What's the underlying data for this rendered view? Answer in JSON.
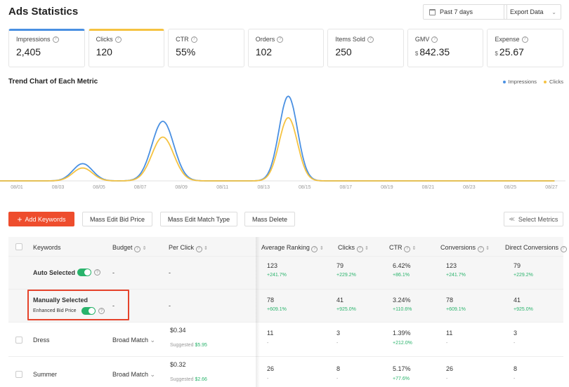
{
  "header": {
    "title": "Ads Statistics",
    "date_range": "Past 7 days",
    "export_label": "Export Data"
  },
  "metrics": [
    {
      "label": "Impressions",
      "value": "2,405",
      "currency": ""
    },
    {
      "label": "Clicks",
      "value": "120",
      "currency": ""
    },
    {
      "label": "CTR",
      "value": "55%",
      "currency": ""
    },
    {
      "label": "Orders",
      "value": "102",
      "currency": ""
    },
    {
      "label": "Items Sold",
      "value": "250",
      "currency": ""
    },
    {
      "label": "GMV",
      "value": "842.35",
      "currency": "$"
    },
    {
      "label": "Expense",
      "value": "25.67",
      "currency": "$"
    }
  ],
  "chart": {
    "title": "Trend Chart of Each Metric",
    "legend": [
      "Impressions",
      "Clicks"
    ]
  },
  "chart_data": {
    "type": "area",
    "x": [
      "08/01",
      "08/02",
      "08/03",
      "08/04",
      "08/05",
      "08/06",
      "08/07",
      "08/08",
      "08/09",
      "08/10",
      "08/11",
      "08/12",
      "08/13",
      "08/14",
      "08/15",
      "08/16",
      "08/17",
      "08/18",
      "08/19",
      "08/20",
      "08/21",
      "08/22",
      "08/23",
      "08/24",
      "08/25",
      "08/26",
      "08/27"
    ],
    "tick_labels": [
      "08/01",
      "08/03",
      "08/05",
      "08/07",
      "08/09",
      "08/11",
      "08/13",
      "08/15",
      "08/17",
      "08/19",
      "08/21",
      "08/23",
      "08/25",
      "08/27"
    ],
    "series": [
      {
        "name": "Impressions",
        "color": "#4a90e2",
        "values": [
          0,
          0,
          0,
          0,
          0,
          0,
          0,
          0,
          0,
          0,
          0,
          0,
          0,
          0,
          0,
          0,
          0,
          0,
          0,
          0,
          0,
          0,
          0,
          0,
          0,
          0,
          0
        ],
        "peaks": [
          [
            3.2,
            24
          ],
          [
            7.1,
            83
          ],
          [
            13.2,
            118
          ]
        ]
      },
      {
        "name": "Clicks",
        "color": "#f5c342",
        "values": [
          0,
          0,
          0,
          0,
          0,
          0,
          0,
          0,
          0,
          0,
          0,
          0,
          0,
          0,
          0,
          0,
          0,
          0,
          0,
          0,
          0,
          0,
          0,
          0,
          0,
          0,
          0
        ],
        "peaks": [
          [
            3.2,
            18
          ],
          [
            7.1,
            61
          ],
          [
            13.2,
            88
          ]
        ]
      }
    ],
    "ylim": [
      0,
      125
    ],
    "grid": false
  },
  "toolbar": {
    "add_keywords": "Add Keywords",
    "mass_edit_bid": "Mass Edit Bid Price",
    "mass_edit_match": "Mass Edit Match Type",
    "mass_delete": "Mass Delete",
    "select_metrics": "Select Metrics"
  },
  "table": {
    "headers": [
      "Keywords",
      "Budget",
      "Per Click",
      "Average Ranking",
      "Clicks",
      "CTR",
      "Conversions",
      "Direct Conversions"
    ],
    "rows": [
      {
        "keyword": "Auto Selected",
        "budget": "-",
        "per_click": "-",
        "suggested": "",
        "avg_rank": "123",
        "avg_rank_d": "+241.7%",
        "clicks": "79",
        "clicks_d": "+229.2%",
        "ctr": "6.42%",
        "ctr_d": "+86.1%",
        "conv": "123",
        "conv_d": "+241.7%",
        "dconv": "79",
        "dconv_d": "+229.2%"
      },
      {
        "keyword": "Manually Selected",
        "sub_label": "Enhanced Bid Price",
        "budget": "-",
        "per_click": "-",
        "suggested": "",
        "avg_rank": "78",
        "avg_rank_d": "+609.1%",
        "clicks": "41",
        "clicks_d": "+925.0%",
        "ctr": "3.24%",
        "ctr_d": "+110.6%",
        "conv": "78",
        "conv_d": "+609.1%",
        "dconv": "41",
        "dconv_d": "+925.0%"
      },
      {
        "keyword": "Dress",
        "budget": "Broad Match",
        "per_click": "$0.34",
        "suggested_label": "Suggested",
        "suggested": "$5.95",
        "avg_rank": "11",
        "avg_rank_d": "-",
        "clicks": "3",
        "clicks_d": "-",
        "ctr": "1.39%",
        "ctr_d": "+212.0%",
        "conv": "11",
        "conv_d": "-",
        "dconv": "3",
        "dconv_d": "-"
      },
      {
        "keyword": "Summer",
        "budget": "Broad Match",
        "per_click": "$0.32",
        "suggested_label": "Suggested",
        "suggested": "$2.66",
        "avg_rank": "26",
        "avg_rank_d": "-",
        "clicks": "8",
        "clicks_d": "-",
        "ctr": "5.17%",
        "ctr_d": "+77.6%",
        "conv": "26",
        "conv_d": "-",
        "dconv": "8",
        "dconv_d": "-"
      }
    ]
  }
}
